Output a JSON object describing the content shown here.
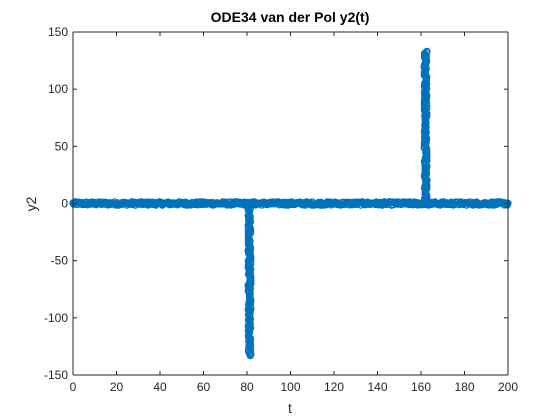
{
  "chart_data": {
    "type": "scatter",
    "title": "ODE34 van der Pol y2(t)",
    "xlabel": "t",
    "ylabel": "y2",
    "xlim": [
      0,
      200
    ],
    "ylim": [
      -150,
      150
    ],
    "xticks": [
      0,
      20,
      40,
      60,
      80,
      100,
      120,
      140,
      160,
      180,
      200
    ],
    "yticks": [
      -150,
      -100,
      -50,
      0,
      50,
      100,
      150
    ],
    "grid": false,
    "marker": "circle-open",
    "color": "#0072BD",
    "series": [
      {
        "segments": [
          {
            "x_range": [
              0,
              80.5
            ],
            "y_range": [
              -1.5,
              1.5
            ],
            "note": ""
          },
          {
            "x_range": [
              80.5,
              81.8
            ],
            "y_range": [
              -133,
              0
            ]
          },
          {
            "x_range": [
              81.8,
              161.5
            ],
            "y_range": [
              -1.5,
              1.5
            ]
          },
          {
            "x_range": [
              161.5,
              162.8
            ],
            "y_range": [
              0,
              133
            ]
          },
          {
            "x_range": [
              162.8,
              200
            ],
            "y_range": [
              -1.5,
              1.5
            ]
          }
        ]
      }
    ]
  }
}
